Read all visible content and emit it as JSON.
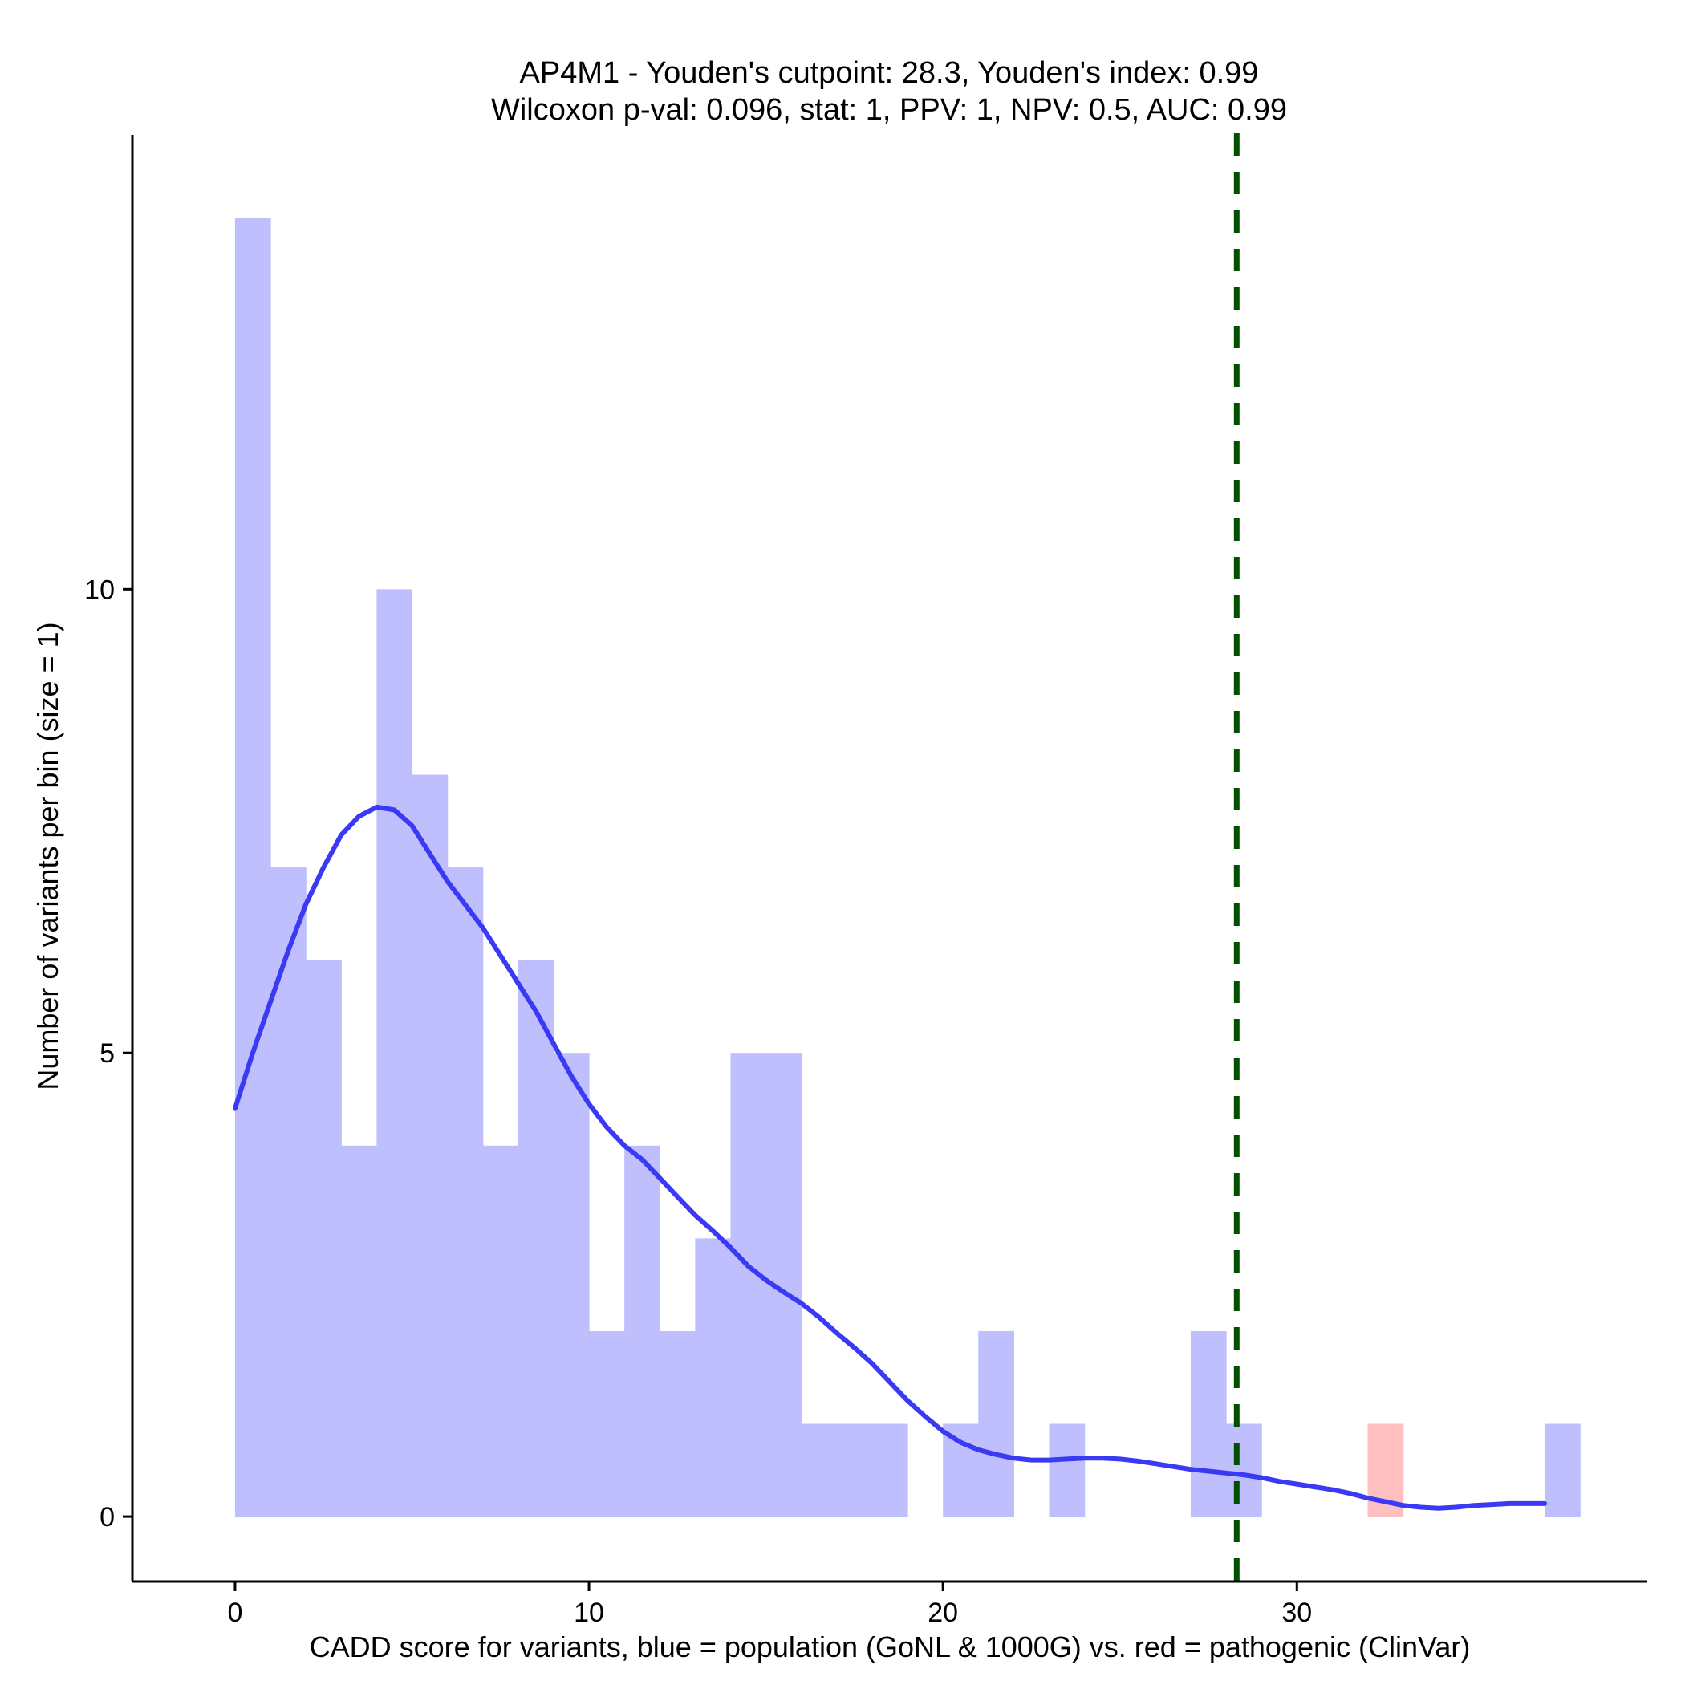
{
  "chart_data": {
    "type": "bar",
    "title_line1": "AP4M1 - Youden's cutpoint: 28.3, Youden's index: 0.99",
    "title_line2": "Wilcoxon p-val: 0.096, stat: 1, PPV: 1, NPV: 0.5, AUC: 0.99",
    "xlabel": "CADD score for variants, blue = population (GoNL & 1000G) vs. red = pathogenic (ClinVar)",
    "ylabel": "Number of variants per bin (size = 1)",
    "xlim": [
      -2.9,
      39.9
    ],
    "ylim": [
      -0.7,
      14.9
    ],
    "x_ticks": [
      0,
      10,
      20,
      30
    ],
    "x_tick_labels": [
      "0",
      "10",
      "20",
      "30"
    ],
    "y_ticks": [
      0,
      5,
      10
    ],
    "y_tick_labels": [
      "0",
      "5",
      "10"
    ],
    "bin_width": 1,
    "series": [
      {
        "name": "population (GoNL & 1000G)",
        "color": "#bfbffd",
        "bins": [
          {
            "x0": 0,
            "count": 14
          },
          {
            "x0": 1,
            "count": 7
          },
          {
            "x0": 2,
            "count": 6
          },
          {
            "x0": 3,
            "count": 4
          },
          {
            "x0": 4,
            "count": 10
          },
          {
            "x0": 5,
            "count": 8
          },
          {
            "x0": 6,
            "count": 7
          },
          {
            "x0": 7,
            "count": 4
          },
          {
            "x0": 8,
            "count": 6
          },
          {
            "x0": 9,
            "count": 5
          },
          {
            "x0": 10,
            "count": 2
          },
          {
            "x0": 11,
            "count": 4
          },
          {
            "x0": 12,
            "count": 2
          },
          {
            "x0": 13,
            "count": 3
          },
          {
            "x0": 14,
            "count": 5
          },
          {
            "x0": 15,
            "count": 5
          },
          {
            "x0": 16,
            "count": 1
          },
          {
            "x0": 17,
            "count": 1
          },
          {
            "x0": 18,
            "count": 1
          },
          {
            "x0": 20,
            "count": 1
          },
          {
            "x0": 21,
            "count": 2
          },
          {
            "x0": 23,
            "count": 1
          },
          {
            "x0": 27,
            "count": 2
          },
          {
            "x0": 28,
            "count": 1
          },
          {
            "x0": 37,
            "count": 1
          }
        ]
      },
      {
        "name": "pathogenic (ClinVar)",
        "color": "#fdbfbf",
        "bins": [
          {
            "x0": 32,
            "count": 1
          }
        ]
      }
    ],
    "density_curve": {
      "name": "population density",
      "color": "#3a3af5",
      "points": [
        [
          0,
          4.4
        ],
        [
          0.5,
          5.0
        ],
        [
          1,
          5.55
        ],
        [
          1.5,
          6.1
        ],
        [
          2,
          6.6
        ],
        [
          2.5,
          7.0
        ],
        [
          3,
          7.35
        ],
        [
          3.5,
          7.55
        ],
        [
          4,
          7.65
        ],
        [
          4.5,
          7.62
        ],
        [
          5,
          7.45
        ],
        [
          5.5,
          7.15
        ],
        [
          6,
          6.85
        ],
        [
          6.5,
          6.6
        ],
        [
          7,
          6.35
        ],
        [
          7.5,
          6.05
        ],
        [
          8,
          5.75
        ],
        [
          8.5,
          5.45
        ],
        [
          9,
          5.1
        ],
        [
          9.5,
          4.75
        ],
        [
          10,
          4.45
        ],
        [
          10.5,
          4.2
        ],
        [
          11,
          4.0
        ],
        [
          11.5,
          3.85
        ],
        [
          12,
          3.65
        ],
        [
          12.5,
          3.45
        ],
        [
          13,
          3.25
        ],
        [
          13.5,
          3.08
        ],
        [
          14,
          2.9
        ],
        [
          14.5,
          2.7
        ],
        [
          15,
          2.55
        ],
        [
          15.5,
          2.42
        ],
        [
          16,
          2.3
        ],
        [
          16.5,
          2.15
        ],
        [
          17,
          1.98
        ],
        [
          17.5,
          1.82
        ],
        [
          18,
          1.65
        ],
        [
          18.5,
          1.45
        ],
        [
          19,
          1.25
        ],
        [
          19.5,
          1.08
        ],
        [
          20,
          0.92
        ],
        [
          20.5,
          0.8
        ],
        [
          21,
          0.72
        ],
        [
          21.5,
          0.67
        ],
        [
          22,
          0.63
        ],
        [
          22.5,
          0.61
        ],
        [
          23,
          0.61
        ],
        [
          23.5,
          0.62
        ],
        [
          24,
          0.63
        ],
        [
          24.5,
          0.63
        ],
        [
          25,
          0.62
        ],
        [
          25.5,
          0.6
        ],
        [
          26,
          0.57
        ],
        [
          26.5,
          0.54
        ],
        [
          27,
          0.51
        ],
        [
          27.5,
          0.49
        ],
        [
          28,
          0.47
        ],
        [
          28.5,
          0.45
        ],
        [
          29,
          0.42
        ],
        [
          29.5,
          0.38
        ],
        [
          30,
          0.35
        ],
        [
          30.5,
          0.32
        ],
        [
          31,
          0.29
        ],
        [
          31.5,
          0.25
        ],
        [
          32,
          0.2
        ],
        [
          32.5,
          0.16
        ],
        [
          33,
          0.12
        ],
        [
          33.5,
          0.1
        ],
        [
          34,
          0.09
        ],
        [
          34.5,
          0.1
        ],
        [
          35,
          0.12
        ],
        [
          35.5,
          0.13
        ],
        [
          36,
          0.14
        ],
        [
          36.5,
          0.14
        ],
        [
          37,
          0.14
        ]
      ]
    },
    "cutpoint": {
      "x": 28.3,
      "color": "#005000",
      "style": "dashed"
    }
  }
}
